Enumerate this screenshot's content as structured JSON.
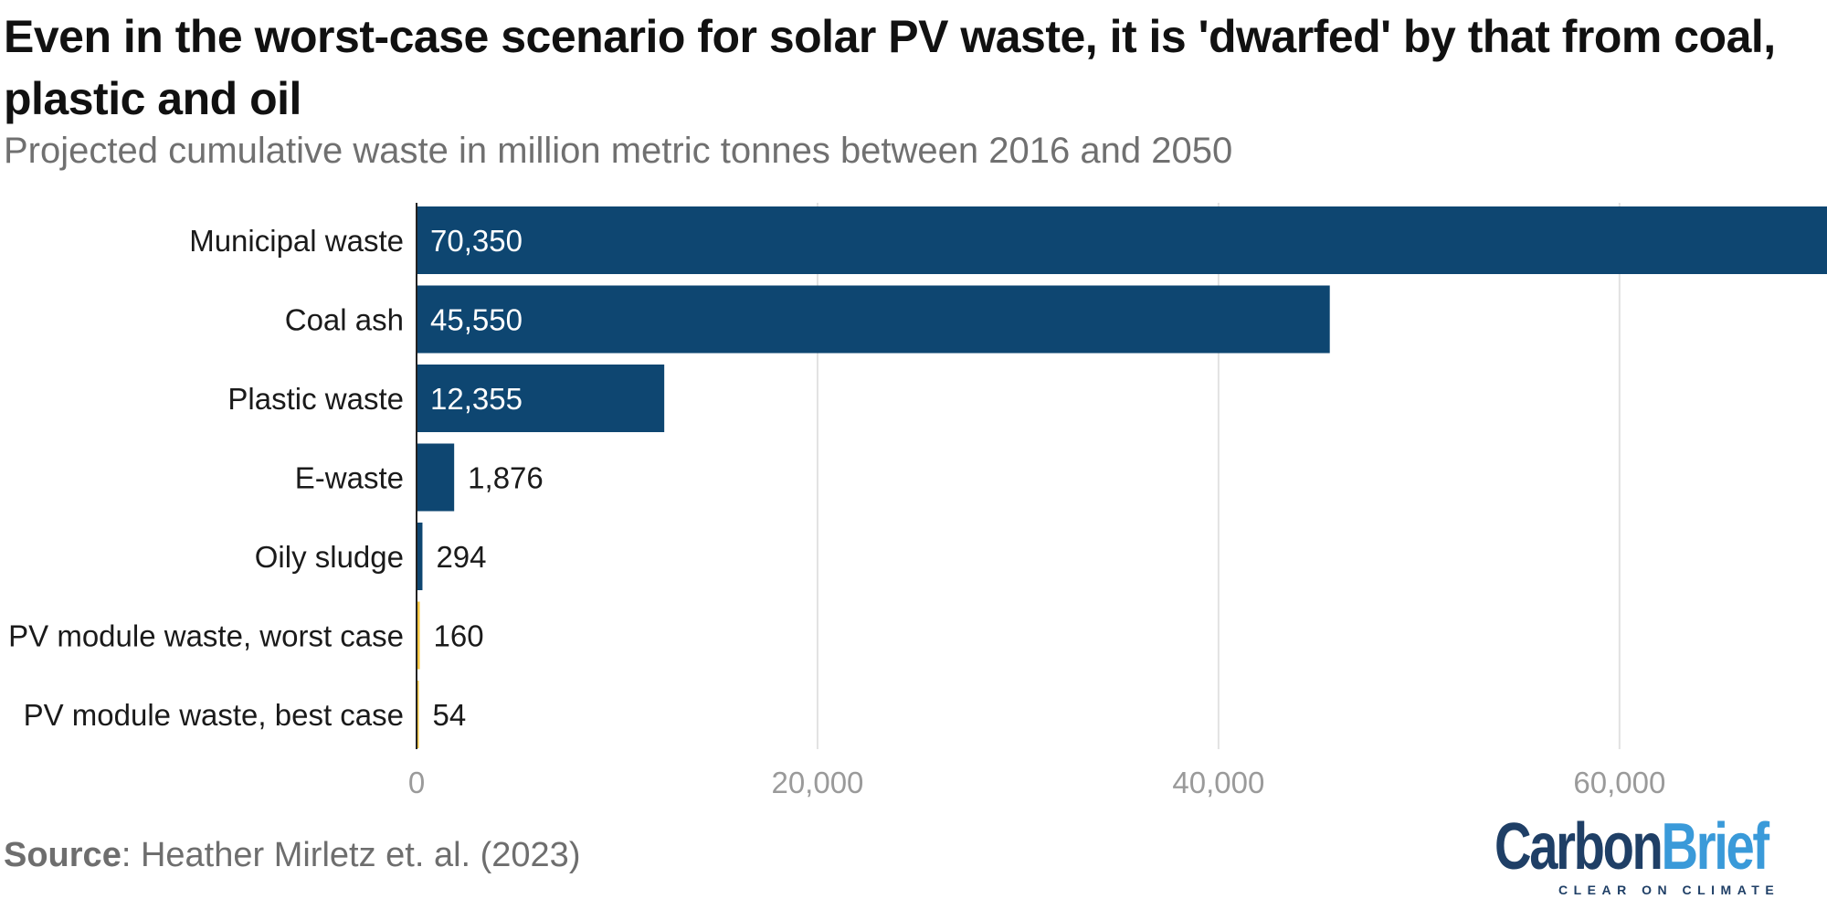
{
  "title": "Even in the worst-case scenario for solar PV waste, it is 'dwarfed' by that from coal, plastic and oil",
  "subtitle": "Projected cumulative waste in million metric tonnes between 2016 and 2050",
  "source": {
    "label": "Source",
    "text": ": Heather Mirletz et. al. (2023)"
  },
  "logo": {
    "carbon": "Carbon",
    "brief": "Brief",
    "tagline": "CLEAR ON CLIMATE"
  },
  "colors": {
    "bar_primary": "#0e4671",
    "bar_highlight": "#f4c542",
    "grid": "#e2e2e2",
    "axis_text": "#9a9a9a"
  },
  "chart_data": {
    "type": "bar",
    "orientation": "horizontal",
    "categories": [
      "Municipal waste",
      "Coal ash",
      "Plastic waste",
      "E-waste",
      "Oily sludge",
      "PV module waste, worst case",
      "PV module waste, best case"
    ],
    "values": [
      70350,
      45550,
      12355,
      1876,
      294,
      160,
      54
    ],
    "value_labels": [
      "70,350",
      "45,550",
      "12,355",
      "1,876",
      "294",
      "160",
      "54"
    ],
    "highlight": [
      false,
      false,
      false,
      false,
      false,
      true,
      true
    ],
    "xlim": [
      0,
      70350
    ],
    "xticks": [
      0,
      20000,
      40000,
      60000
    ],
    "xtick_labels": [
      "0",
      "20,000",
      "40,000",
      "60,000"
    ],
    "grid": true,
    "legend": "none",
    "xlabel": "",
    "ylabel": ""
  }
}
